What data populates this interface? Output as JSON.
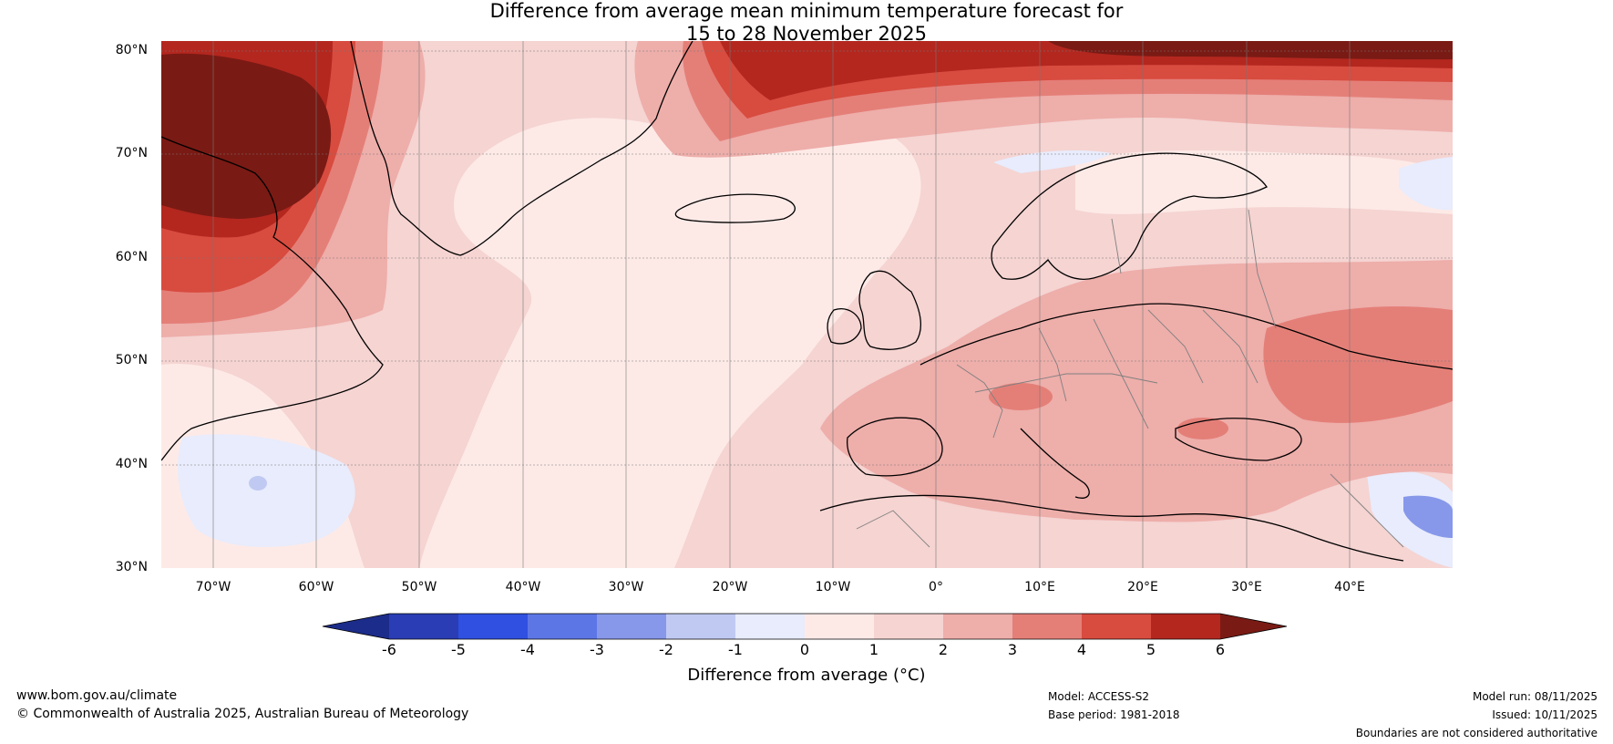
{
  "title": {
    "line1": "Difference from average mean minimum temperature forecast for",
    "line2": "15 to 28 November 2025"
  },
  "map": {
    "latitude_ticks": [
      "80°N",
      "70°N",
      "60°N",
      "50°N",
      "40°N",
      "30°N"
    ],
    "longitude_ticks": [
      "70°W",
      "60°W",
      "50°W",
      "40°W",
      "30°W",
      "20°W",
      "10°W",
      "0°",
      "10°E",
      "20°E",
      "30°E",
      "40°E"
    ],
    "extent": {
      "lon_min": -75,
      "lon_max": 50,
      "lat_min": 30,
      "lat_max": 81
    },
    "background_anomaly_color": "#f5d4d2",
    "coastline_color": "#000000",
    "border_color": "#808080"
  },
  "colorbar": {
    "ticks": [
      "-6",
      "-5",
      "-4",
      "-3",
      "-2",
      "-1",
      "0",
      "1",
      "2",
      "3",
      "4",
      "5",
      "6"
    ],
    "colors": [
      "#1c2c8a",
      "#2a3db4",
      "#2f50e0",
      "#5d76e6",
      "#8798ea",
      "#c0c9f2",
      "#e8ecfc",
      "#fdeae7",
      "#f5d4d2",
      "#eeaeaa",
      "#e47f78",
      "#d84b3f",
      "#b3271f",
      "#7a1a14"
    ],
    "label": "Difference from average (°C)"
  },
  "footer": {
    "website": "www.bom.gov.au/climate",
    "copyright": "© Commonwealth of Australia 2025, Australian Bureau of Meteorology",
    "model": "Model: ACCESS-S2",
    "base_period": "Base period: 1981-2018",
    "model_run": "Model run: 08/11/2025",
    "issued": "Issued: 10/11/2025",
    "boundaries": "Boundaries are not considered authoritative"
  }
}
